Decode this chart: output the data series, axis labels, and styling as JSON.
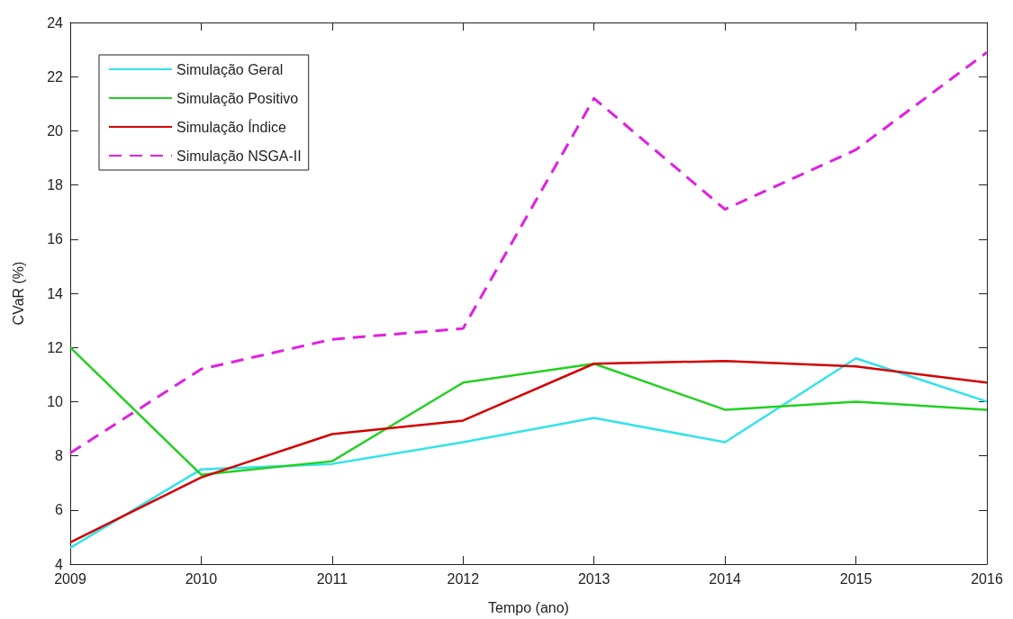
{
  "chart_data": {
    "type": "line",
    "xlabel": "Tempo (ano)",
    "ylabel": "CVaR (%)",
    "x": [
      2009,
      2010,
      2011,
      2012,
      2013,
      2014,
      2015,
      2016
    ],
    "series": [
      {
        "name": "Simulação Geral",
        "color": "#33e3ea",
        "line_style": "solid",
        "values": [
          4.6,
          7.5,
          7.7,
          8.5,
          9.4,
          8.5,
          11.6,
          10.0
        ]
      },
      {
        "name": "Simulação Positivo",
        "color": "#22d022",
        "line_style": "solid",
        "values": [
          12.0,
          7.3,
          7.8,
          10.7,
          11.4,
          9.7,
          10.0,
          9.7
        ]
      },
      {
        "name": "Simulação Índice",
        "color": "#d40000",
        "line_style": "solid",
        "values": [
          4.8,
          7.2,
          8.8,
          9.3,
          11.4,
          11.5,
          11.3,
          10.7
        ]
      },
      {
        "name": "Simulação NSGA-II",
        "color": "#e020e0",
        "line_style": "dashed",
        "values": [
          8.1,
          11.2,
          12.3,
          12.7,
          21.2,
          17.1,
          19.3,
          22.9
        ]
      }
    ],
    "xlim": [
      2009,
      2016
    ],
    "xticks": [
      2009,
      2010,
      2011,
      2012,
      2013,
      2014,
      2015,
      2016
    ],
    "ylim": [
      4,
      24
    ],
    "yticks": [
      4,
      6,
      8,
      10,
      12,
      14,
      16,
      18,
      20,
      22,
      24
    ],
    "grid": false,
    "legend": "top left",
    "marker": "none"
  }
}
